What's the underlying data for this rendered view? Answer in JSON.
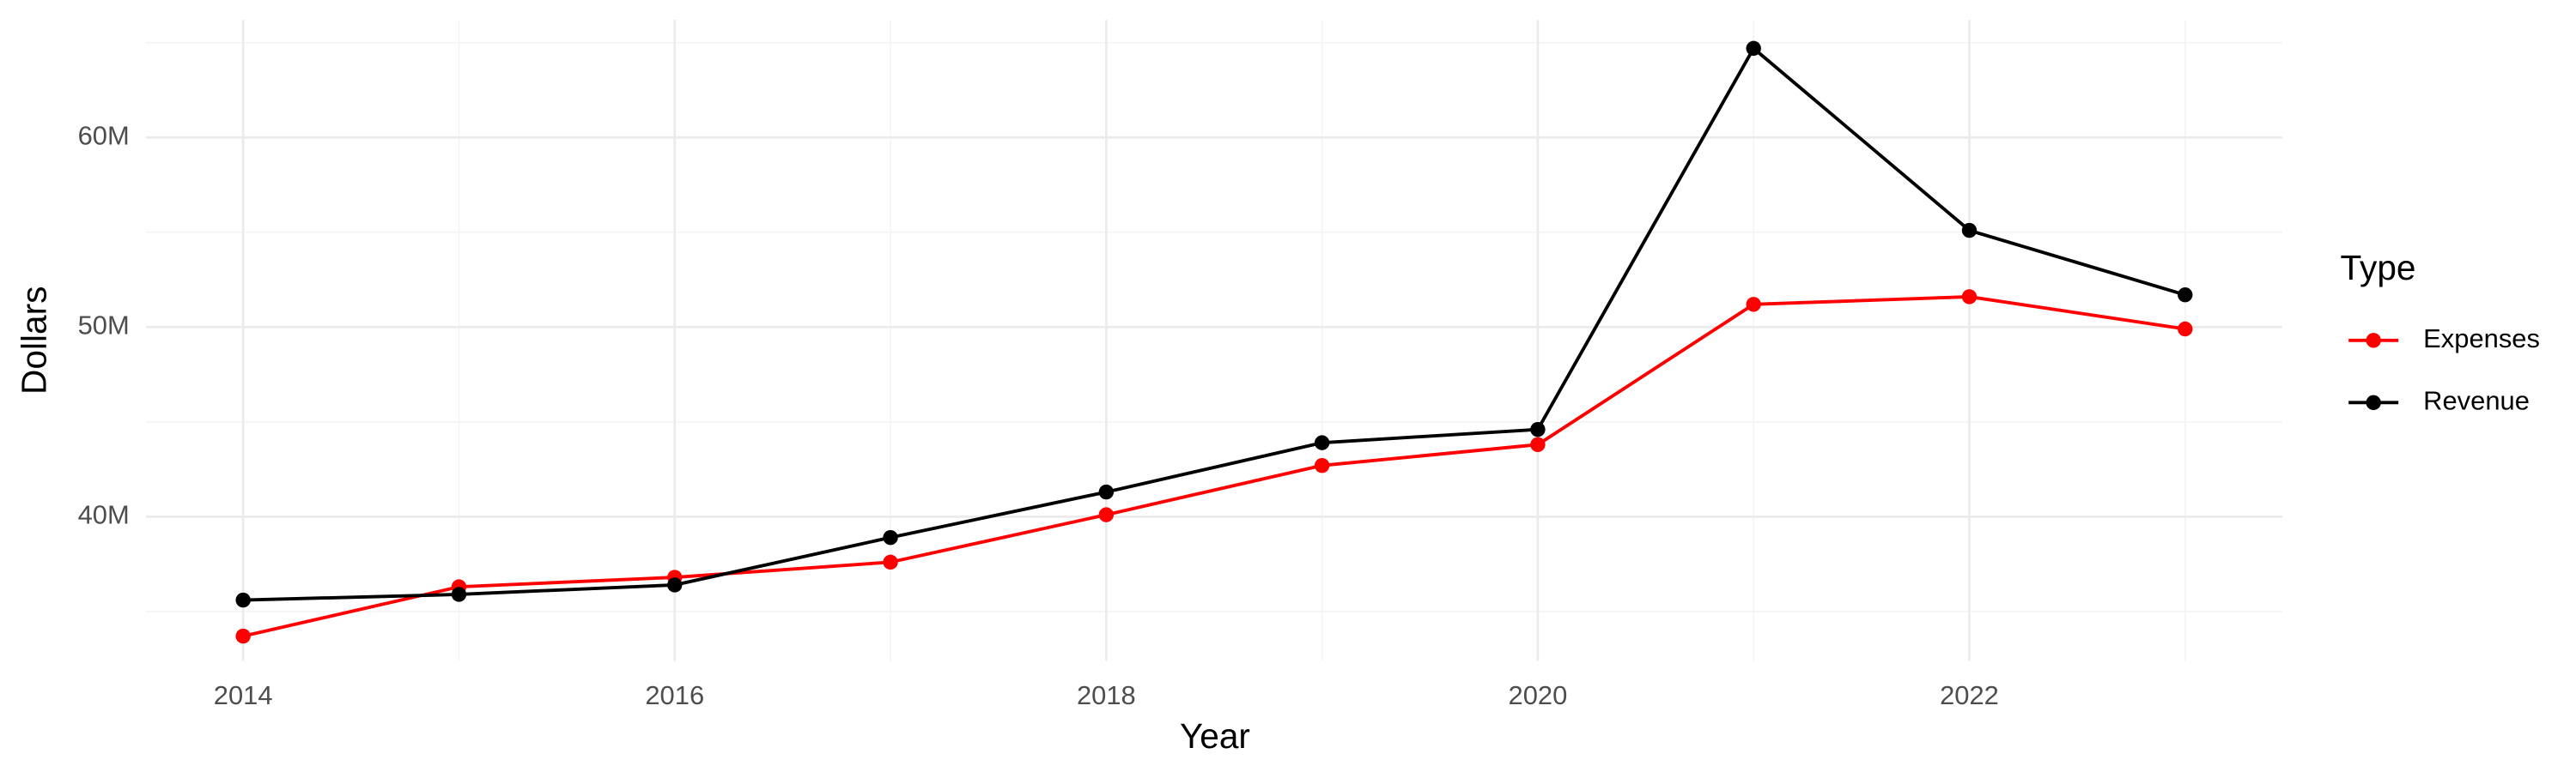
{
  "chart_data": {
    "type": "line",
    "x_label": "Year",
    "y_label": "Dollars",
    "legend_title": "Type",
    "x": [
      2014,
      2015,
      2016,
      2017,
      2018,
      2019,
      2020,
      2021,
      2022,
      2023
    ],
    "series": [
      {
        "name": "Expenses",
        "color": "#ff0000",
        "values": [
          33700000,
          36300000,
          36800000,
          37600000,
          40100000,
          42700000,
          43800000,
          51200000,
          51600000,
          49900000
        ]
      },
      {
        "name": "Revenue",
        "color": "#000000",
        "values": [
          35600000,
          35900000,
          36400000,
          38900000,
          41300000,
          43900000,
          44600000,
          64700000,
          55100000,
          51700000
        ]
      }
    ],
    "xlim": [
      2013.55,
      2023.45
    ],
    "xticks": [
      2014,
      2016,
      2018,
      2020,
      2022
    ],
    "ylim": [
      32400000,
      66200000
    ],
    "yticks": [
      {
        "value": 40000000,
        "label": "40M"
      },
      {
        "value": 50000000,
        "label": "50M"
      },
      {
        "value": 60000000,
        "label": "60M"
      }
    ],
    "grid": true,
    "legend": "right"
  }
}
